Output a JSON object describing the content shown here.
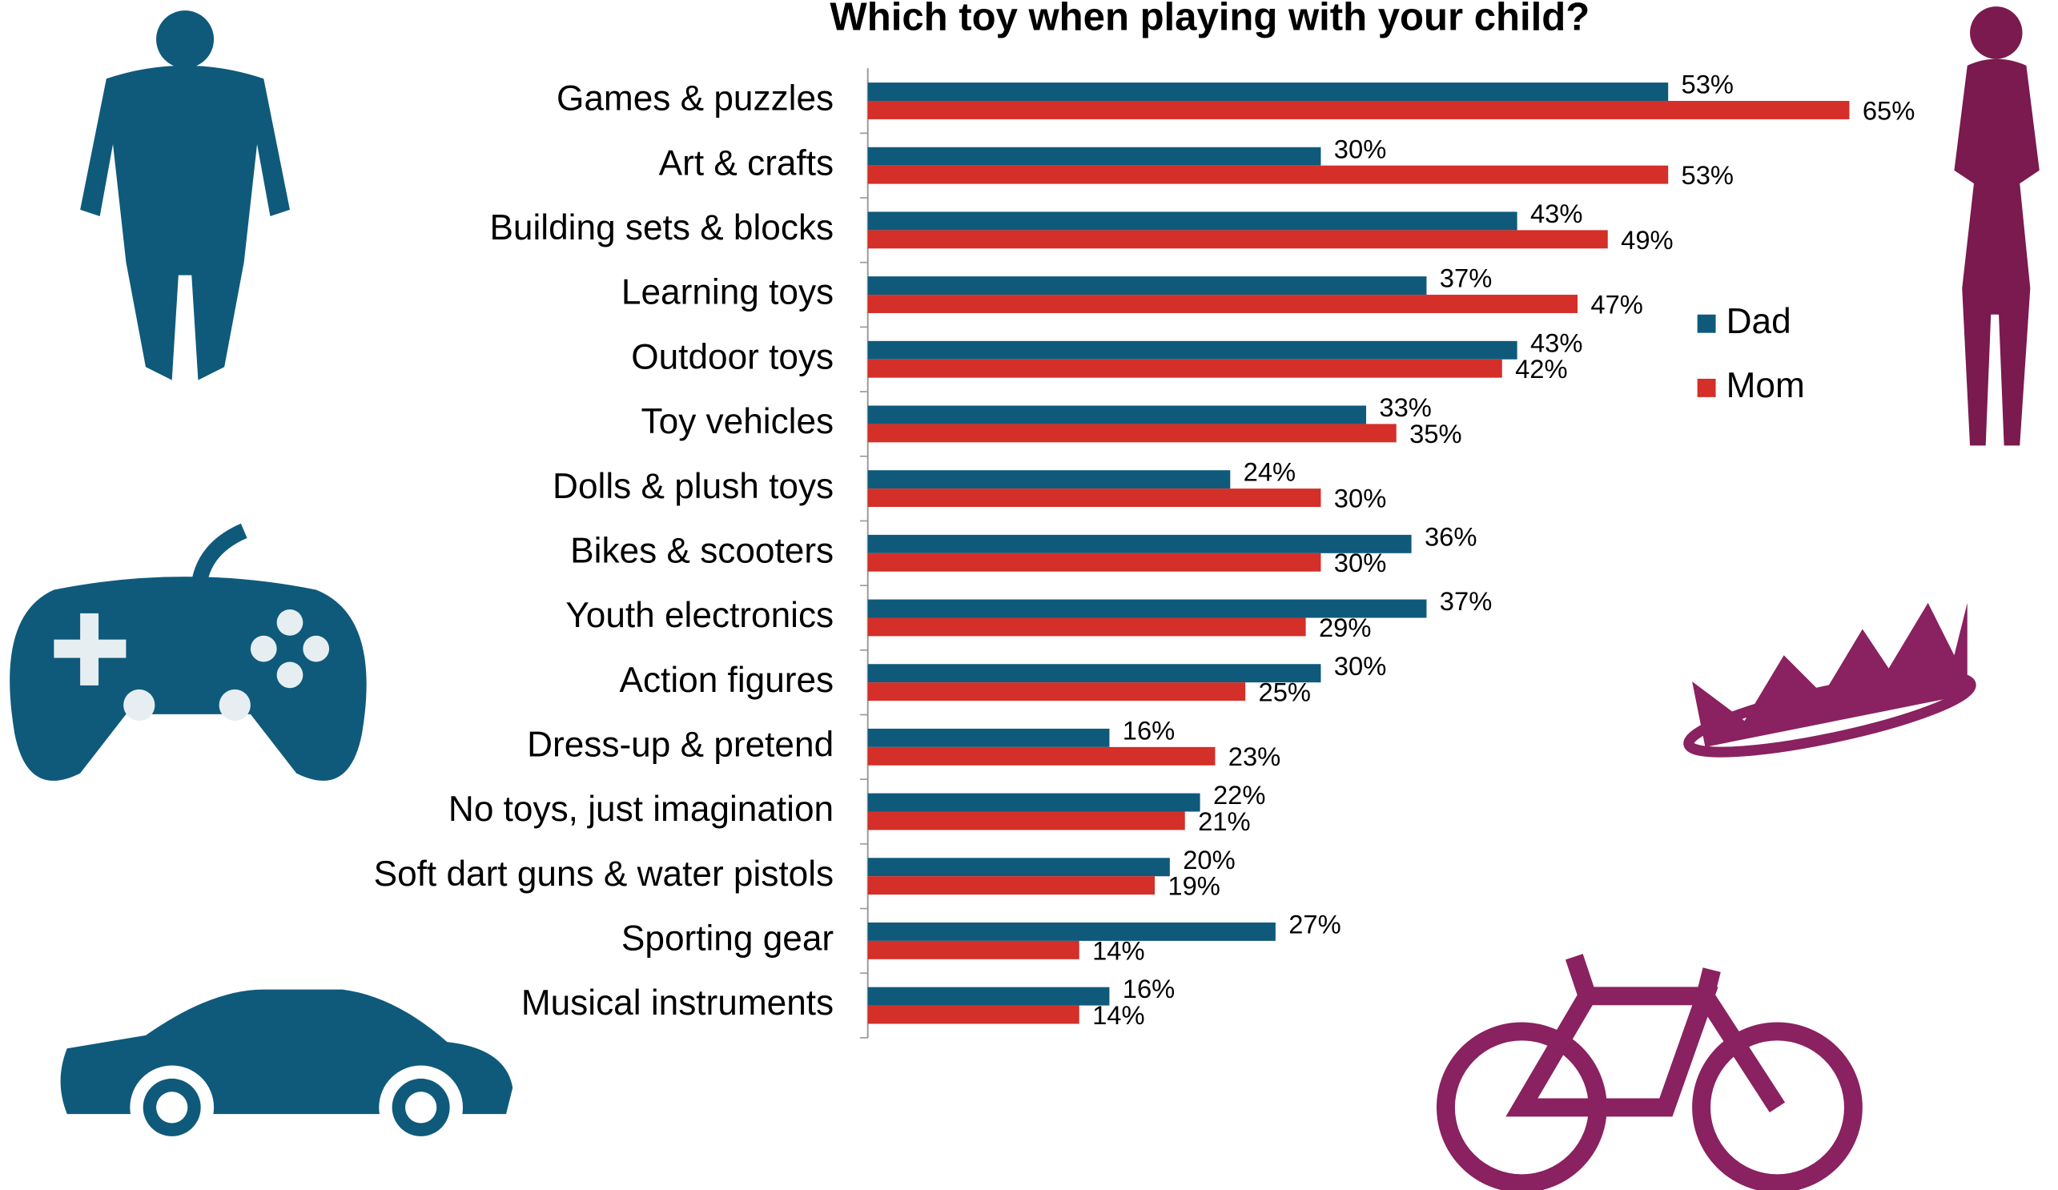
{
  "chart_data": {
    "type": "bar",
    "orientation": "horizontal",
    "title": "Which toy when playing with your child?",
    "categories": [
      "Games & puzzles",
      "Art & crafts",
      "Building sets & blocks",
      "Learning toys",
      "Outdoor toys",
      "Toy vehicles",
      "Dolls & plush toys",
      "Bikes & scooters",
      "Youth electronics",
      "Action figures",
      "Dress-up & pretend",
      "No toys, just imagination",
      "Soft dart guns & water pistols",
      "Sporting gear",
      "Musical instruments"
    ],
    "series": [
      {
        "name": "Dad",
        "color": "#0f5a7b",
        "values": [
          53,
          30,
          43,
          37,
          43,
          33,
          24,
          36,
          37,
          30,
          16,
          22,
          20,
          27,
          16
        ],
        "value_labels": [
          "53%",
          "30%",
          "43%",
          "37%",
          "43%",
          "33%",
          "24%",
          "36%",
          "37%",
          "30%",
          "16%",
          "22%",
          "20%",
          "27%",
          "16%"
        ]
      },
      {
        "name": "Mom",
        "color": "#d42f28",
        "values": [
          65,
          53,
          49,
          47,
          42,
          35,
          30,
          30,
          29,
          25,
          23,
          21,
          19,
          14,
          14
        ],
        "value_labels": [
          "65%",
          "53%",
          "49%",
          "47%",
          "42%",
          "35%",
          "30%",
          "30%",
          "29%",
          "25%",
          "23%",
          "21%",
          "19%",
          "14%",
          "14%"
        ]
      }
    ],
    "xlim": [
      0,
      65
    ],
    "legend": "right"
  }
}
